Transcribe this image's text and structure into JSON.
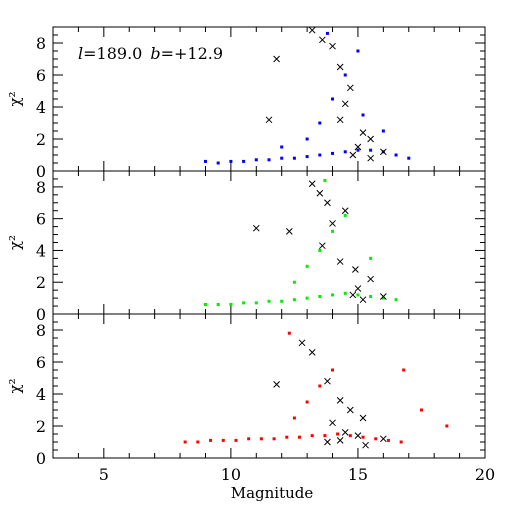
{
  "chart_data": {
    "type": "scatter",
    "xlabel": "Magnitude",
    "xlim": [
      3,
      20
    ],
    "x_ticks": [
      5,
      10,
      15,
      20
    ],
    "x_tick_labels": [
      "5",
      "10",
      "15",
      "20"
    ],
    "annotation": {
      "text_l": "l",
      "value_l": "=189.0",
      "text_b": "b",
      "value_b": "=+12.9"
    },
    "panels": [
      {
        "ylabel": "χ²",
        "ylim": [
          0,
          9
        ],
        "y_ticks": [
          0,
          2,
          4,
          6,
          8
        ],
        "y_tick_labels": [
          "0",
          "2",
          "4",
          "6",
          "8"
        ],
        "series": [
          {
            "marker": "dot",
            "color": "#0000ff",
            "points": [
              [
                9.0,
                0.6
              ],
              [
                9.5,
                0.5
              ],
              [
                10,
                0.6
              ],
              [
                10.5,
                0.6
              ],
              [
                11,
                0.7
              ],
              [
                11.5,
                0.7
              ],
              [
                12,
                0.8
              ],
              [
                12.5,
                0.8
              ],
              [
                13,
                0.9
              ],
              [
                13.5,
                1.0
              ],
              [
                14,
                1.1
              ],
              [
                14.5,
                1.2
              ],
              [
                15,
                1.3
              ],
              [
                15.5,
                1.3
              ],
              [
                16,
                1.2
              ],
              [
                16.5,
                1.0
              ],
              [
                17,
                0.8
              ],
              [
                12,
                1.5
              ],
              [
                13,
                2.0
              ],
              [
                13.5,
                3.0
              ],
              [
                14,
                4.5
              ],
              [
                14.5,
                6.0
              ],
              [
                15,
                7.5
              ],
              [
                13.8,
                8.6
              ],
              [
                15.2,
                3.5
              ],
              [
                16,
                2.5
              ]
            ]
          },
          {
            "marker": "cross",
            "color": "#000000",
            "points": [
              [
                11.8,
                7.0
              ],
              [
                11.5,
                3.2
              ],
              [
                13.2,
                8.8
              ],
              [
                13.6,
                8.2
              ],
              [
                14.0,
                7.8
              ],
              [
                14.3,
                6.5
              ],
              [
                14.7,
                5.2
              ],
              [
                14.5,
                4.2
              ],
              [
                14.3,
                3.2
              ],
              [
                15.2,
                2.4
              ],
              [
                15.5,
                2.0
              ],
              [
                15.0,
                1.5
              ],
              [
                14.8,
                1.0
              ],
              [
                15.5,
                0.8
              ],
              [
                16.0,
                1.2
              ]
            ]
          }
        ]
      },
      {
        "ylabel": "χ²",
        "ylim": [
          0,
          9
        ],
        "y_ticks": [
          0,
          2,
          4,
          6,
          8
        ],
        "y_tick_labels": [
          "0",
          "2",
          "4",
          "6",
          "8"
        ],
        "series": [
          {
            "marker": "dot",
            "color": "#00ee00",
            "points": [
              [
                9.0,
                0.6
              ],
              [
                9.5,
                0.6
              ],
              [
                10,
                0.6
              ],
              [
                10.5,
                0.7
              ],
              [
                11,
                0.7
              ],
              [
                11.5,
                0.8
              ],
              [
                12,
                0.8
              ],
              [
                12.5,
                0.9
              ],
              [
                13,
                1.0
              ],
              [
                13.5,
                1.1
              ],
              [
                14,
                1.2
              ],
              [
                14.5,
                1.3
              ],
              [
                15,
                1.2
              ],
              [
                15.5,
                1.1
              ],
              [
                16,
                1.0
              ],
              [
                16.5,
                0.9
              ],
              [
                12.5,
                2.0
              ],
              [
                13,
                3.0
              ],
              [
                13.5,
                4.0
              ],
              [
                14,
                5.2
              ],
              [
                14.5,
                6.2
              ],
              [
                13.7,
                8.4
              ],
              [
                15.5,
                3.5
              ]
            ]
          },
          {
            "marker": "cross",
            "color": "#000000",
            "points": [
              [
                11.0,
                5.4
              ],
              [
                12.3,
                5.2
              ],
              [
                13.2,
                8.2
              ],
              [
                13.5,
                7.6
              ],
              [
                13.8,
                7.0
              ],
              [
                14.5,
                6.5
              ],
              [
                14.0,
                5.7
              ],
              [
                13.6,
                4.3
              ],
              [
                14.3,
                3.3
              ],
              [
                14.9,
                2.8
              ],
              [
                15.5,
                2.2
              ],
              [
                15.0,
                1.6
              ],
              [
                14.8,
                1.2
              ],
              [
                15.2,
                0.9
              ],
              [
                16.0,
                1.1
              ]
            ]
          }
        ]
      },
      {
        "ylabel": "χ²",
        "ylim": [
          0,
          9
        ],
        "y_ticks": [
          0,
          2,
          4,
          6,
          8
        ],
        "y_tick_labels": [
          "0",
          "2",
          "4",
          "6",
          "8"
        ],
        "series": [
          {
            "marker": "dot",
            "color": "#ff0000",
            "points": [
              [
                8.2,
                1.0
              ],
              [
                8.7,
                1.0
              ],
              [
                9.2,
                1.1
              ],
              [
                9.7,
                1.1
              ],
              [
                10.2,
                1.1
              ],
              [
                10.7,
                1.2
              ],
              [
                11.2,
                1.2
              ],
              [
                11.7,
                1.2
              ],
              [
                12.2,
                1.3
              ],
              [
                12.7,
                1.3
              ],
              [
                13.2,
                1.4
              ],
              [
                13.7,
                1.4
              ],
              [
                14.2,
                1.5
              ],
              [
                14.7,
                1.4
              ],
              [
                15.2,
                1.3
              ],
              [
                15.7,
                1.2
              ],
              [
                16.2,
                1.1
              ],
              [
                16.7,
                1.0
              ],
              [
                12.5,
                2.5
              ],
              [
                13,
                3.5
              ],
              [
                13.5,
                4.5
              ],
              [
                14,
                5.5
              ],
              [
                12.3,
                7.8
              ],
              [
                16.8,
                5.5
              ],
              [
                17.5,
                3.0
              ],
              [
                18.5,
                2.0
              ]
            ]
          },
          {
            "marker": "cross",
            "color": "#000000",
            "points": [
              [
                11.8,
                4.6
              ],
              [
                12.8,
                7.2
              ],
              [
                13.2,
                6.6
              ],
              [
                13.8,
                4.8
              ],
              [
                14.3,
                3.6
              ],
              [
                14.7,
                3.0
              ],
              [
                15.2,
                2.5
              ],
              [
                14.0,
                2.2
              ],
              [
                14.5,
                1.6
              ],
              [
                14.3,
                1.1
              ],
              [
                15.0,
                1.4
              ],
              [
                15.3,
                0.8
              ],
              [
                16.0,
                1.2
              ],
              [
                13.8,
                1.0
              ]
            ]
          }
        ]
      }
    ]
  }
}
